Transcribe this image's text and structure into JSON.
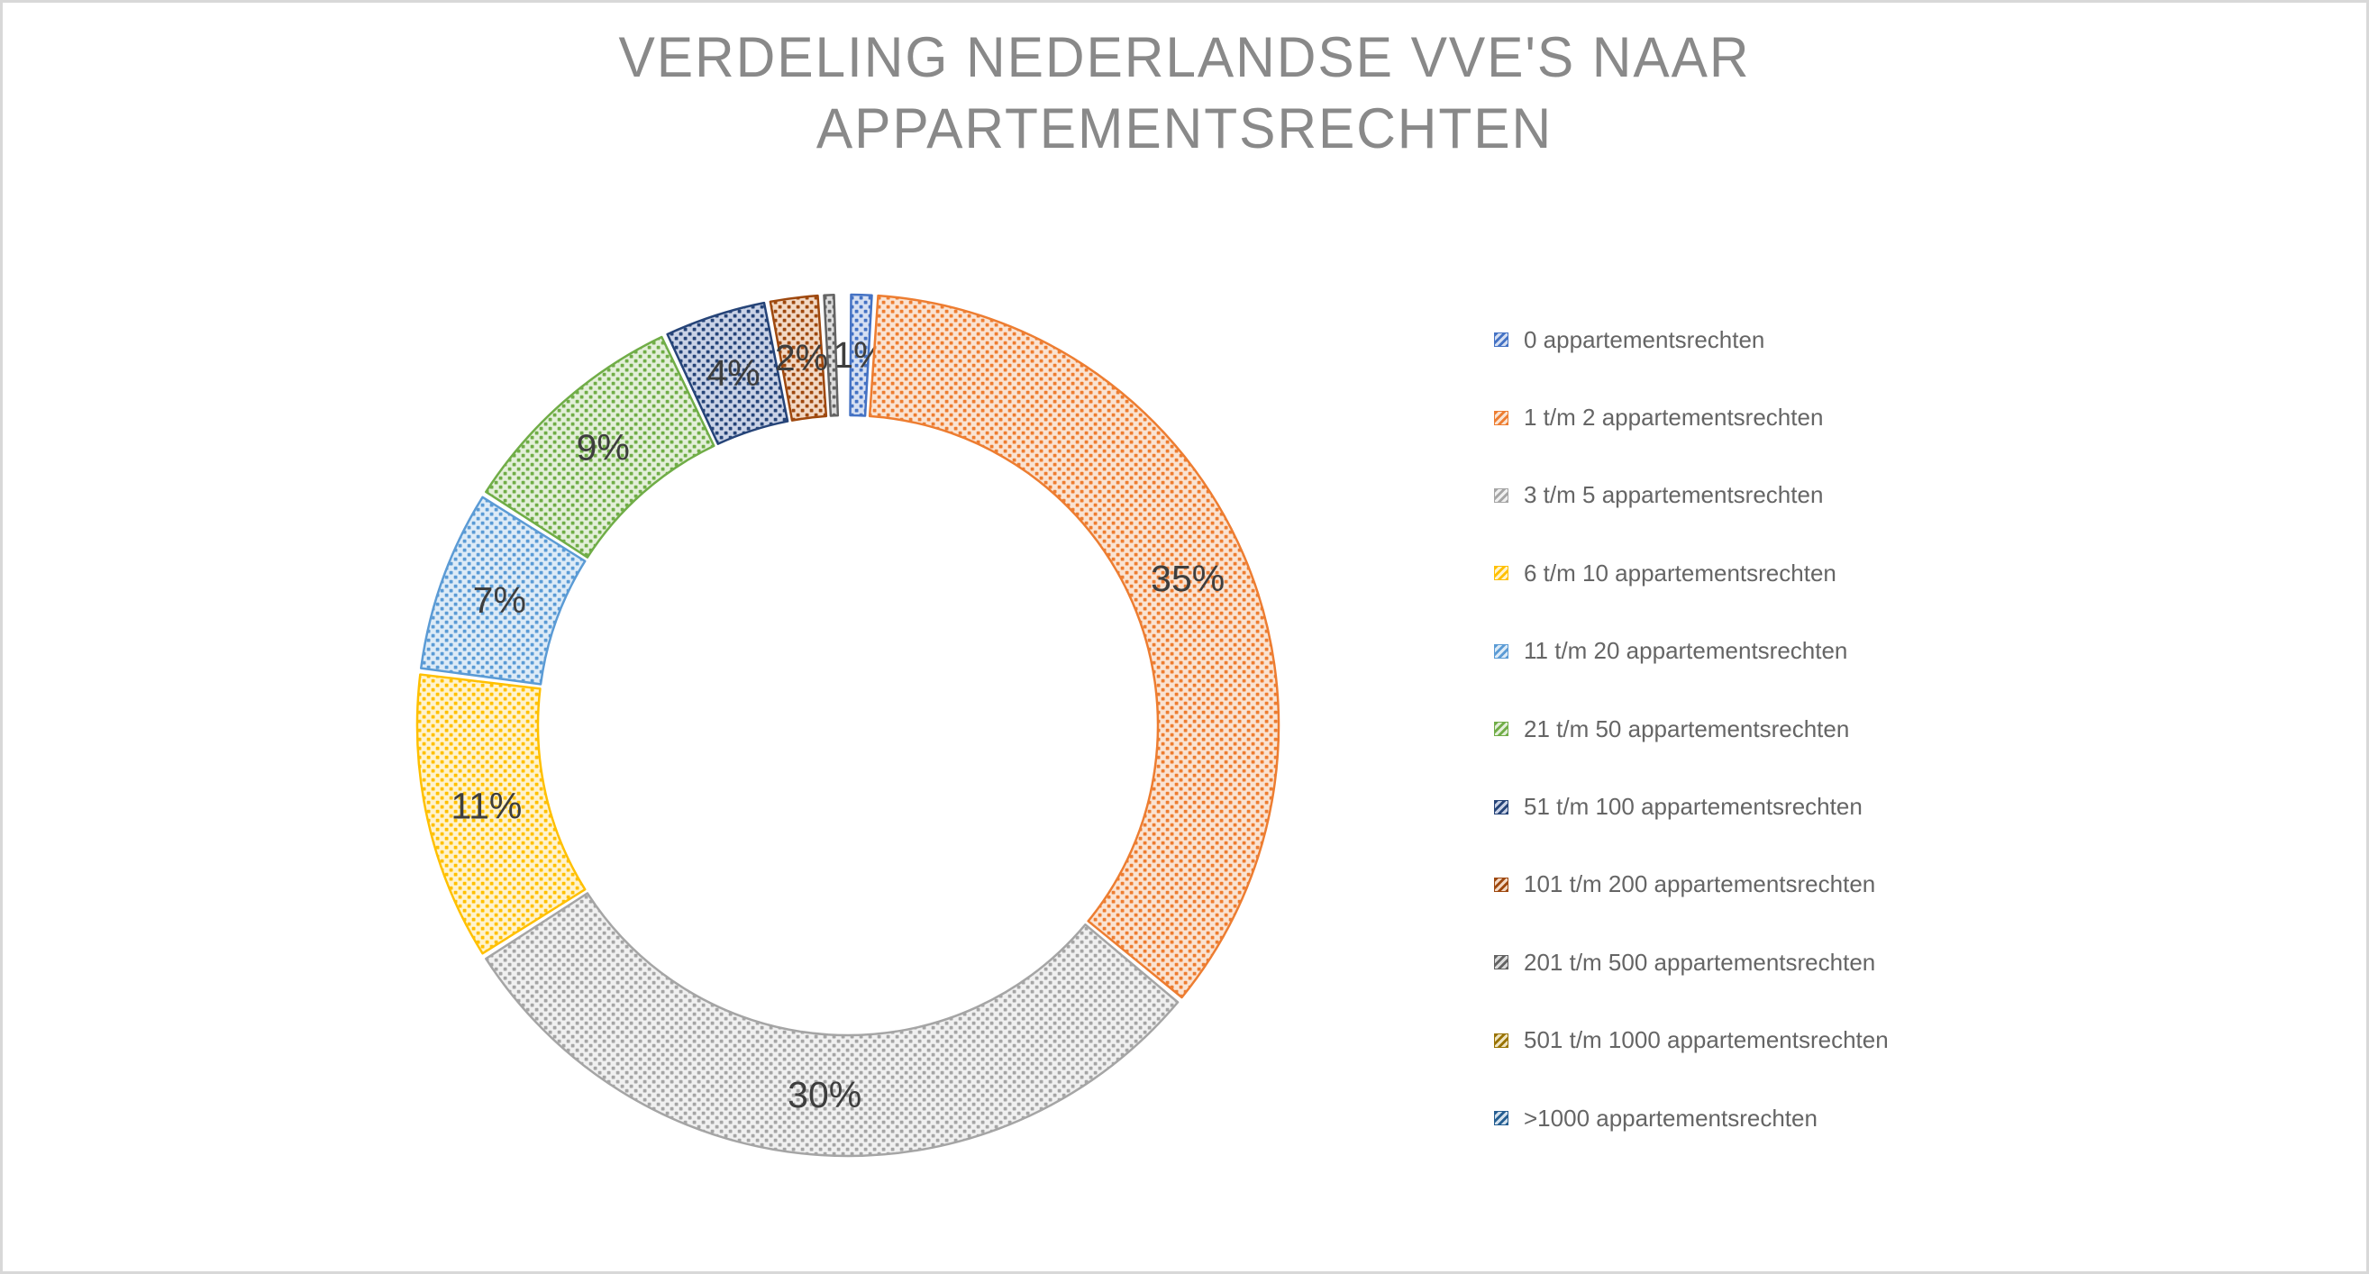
{
  "title": {
    "line1": "VERDELING NEDERLANDSE VVE'S NAAR",
    "line2": "APPARTEMENTSRECHTEN",
    "color": "#898989"
  },
  "chart_data": {
    "type": "pie",
    "subtype": "donut",
    "title": "VERDELING NEDERLANDSE VVE'S NAAR APPARTEMENTSRECHTEN",
    "legend_position": "right",
    "direction": "clockwise",
    "start_angle_deg": 0,
    "donut_hole_ratio": 0.72,
    "pattern_fill": "dashed-upward-diagonal",
    "categories": [
      "0 appartementsrechten",
      "1 t/m 2 appartementsrechten",
      "3 t/m 5 appartementsrechten",
      "6 t/m 10 appartementsrechten",
      "11 t/m 20 appartementsrechten",
      "21 t/m 50 appartementsrechten",
      "51 t/m 100 appartementsrechten",
      "101 t/m 200 appartementsrechten",
      "201 t/m 500 appartementsrechten",
      "501 t/m 1000 appartementsrechten",
      ">1000 appartementsrechten"
    ],
    "values": [
      1,
      35,
      30,
      11,
      7,
      9,
      4,
      2,
      0.6,
      0.2,
      0.2
    ],
    "data_labels": [
      "1%",
      "35%",
      "30%",
      "11%",
      "7%",
      "9%",
      "4%",
      "2%",
      "",
      "",
      ""
    ],
    "label_color": "#3E3E3E",
    "series_colors": [
      "#4472C4",
      "#ED7D31",
      "#A5A5A5",
      "#FFC000",
      "#5B9BD5",
      "#70AD47",
      "#264478",
      "#9E480E",
      "#636363",
      "#997300",
      "#255E91"
    ],
    "series_colors_light": [
      "#D5DFF2",
      "#FAE3D2",
      "#F0F0F0",
      "#FFF3CE",
      "#DDEBF7",
      "#E3EFD9",
      "#C9D2E6",
      "#F2D8C4",
      "#DCDCDC",
      "#EFE4C2",
      "#D3E1ED"
    ]
  },
  "legend": {
    "text_color": "#656565"
  },
  "page": {
    "background": "#FFFFFF",
    "border_color": "#D8D8D8"
  }
}
